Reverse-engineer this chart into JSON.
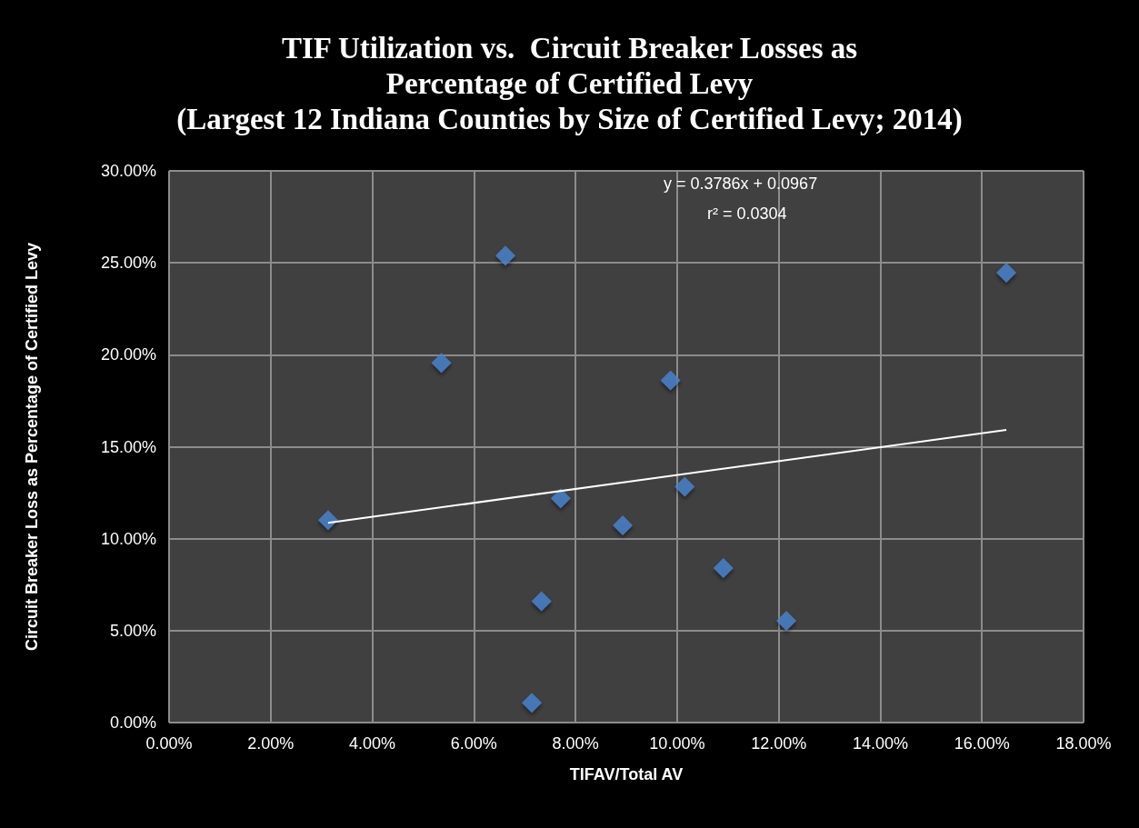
{
  "chart_data": {
    "type": "scatter",
    "title": "TIF Utilization vs.  Circuit Breaker Losses as\nPercentage of Certified Levy\n(Largest 12 Indiana Counties by Size of Certified Levy; 2014)",
    "xlabel": "TIFAV/Total AV",
    "ylabel": "Circuit Breaker Loss as Percentage of Certified Levy",
    "series": [
      {
        "color": "#4a84d0",
        "x": [
          3.13,
          5.36,
          6.62,
          7.71,
          8.93,
          7.33,
          7.14,
          9.87,
          10.15,
          10.91,
          12.15,
          16.48
        ],
        "values": [
          11.01,
          19.56,
          25.39,
          12.2,
          10.72,
          6.6,
          1.07,
          18.61,
          12.83,
          8.4,
          5.54,
          24.46
        ]
      },
      {
        "type": "line",
        "color": "#ffffff",
        "marker": "none",
        "x": [
          3.13,
          16.48
        ],
        "values": [
          10.86,
          15.91
        ]
      }
    ],
    "annotations": [
      "y = 0.3786x + 0.0967",
      "r² = 0.0304"
    ],
    "xlim": [
      0,
      18
    ],
    "ylim": [
      0,
      30
    ],
    "xticks": [
      {
        "value": 0,
        "label": "0.00%"
      },
      {
        "value": 2,
        "label": "2.00%"
      },
      {
        "value": 4,
        "label": "4.00%"
      },
      {
        "value": 6,
        "label": "6.00%"
      },
      {
        "value": 8,
        "label": "8.00%"
      },
      {
        "value": 10,
        "label": "10.00%"
      },
      {
        "value": 12,
        "label": "12.00%"
      },
      {
        "value": 14,
        "label": "14.00%"
      },
      {
        "value": 16,
        "label": "16.00%"
      },
      {
        "value": 18,
        "label": "18.00%"
      }
    ],
    "yticks": [
      {
        "value": 0,
        "label": "0.00%"
      },
      {
        "value": 5,
        "label": "5.00%"
      },
      {
        "value": 10,
        "label": "10.00%"
      },
      {
        "value": 15,
        "label": "15.00%"
      },
      {
        "value": 20,
        "label": "20.00%"
      },
      {
        "value": 25,
        "label": "25.00%"
      },
      {
        "value": 30,
        "label": "30.00%"
      }
    ],
    "grid": true,
    "marker": "diamond"
  }
}
